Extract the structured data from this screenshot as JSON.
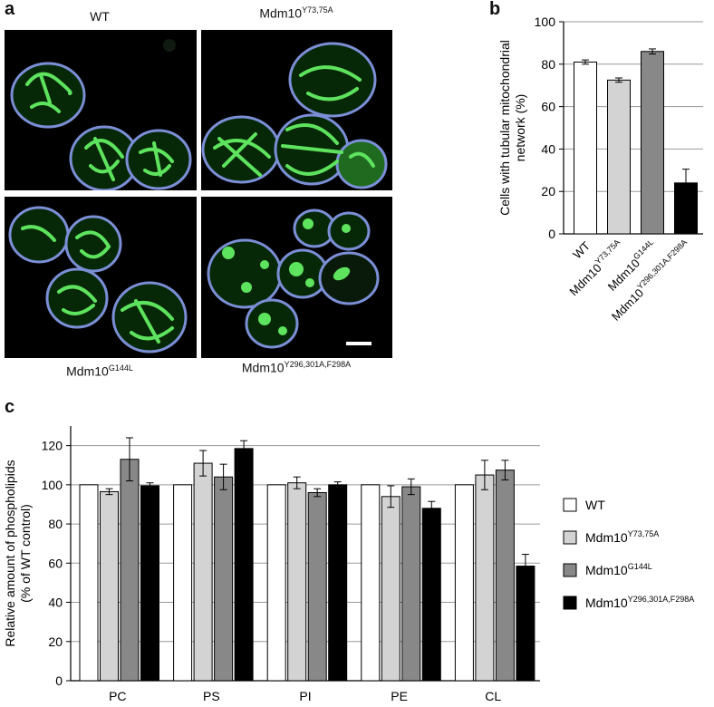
{
  "panel_a": {
    "letter": "a",
    "labels": {
      "wt": "WT",
      "y73_base": "Mdm10",
      "y73_sup": "Y73,75A",
      "g144_base": "Mdm10",
      "g144_sup": "G144L",
      "y296_base": "Mdm10",
      "y296_sup": "Y296,301A,F298A"
    }
  },
  "chart_data": [
    {
      "panel": "b",
      "type": "bar",
      "ylabel_line1": "Cells with tubular mitochondrial",
      "ylabel_line2": "network (%)",
      "ylim": [
        0,
        100
      ],
      "yticks": [
        0,
        20,
        40,
        60,
        80,
        100
      ],
      "grid": true,
      "categories": [
        {
          "base": "WT",
          "sup": ""
        },
        {
          "base": "Mdm10",
          "sup": "Y73,75A"
        },
        {
          "base": "Mdm10",
          "sup": "G144L"
        },
        {
          "base": "Mdm10",
          "sup": "Y296,301A,F298A"
        }
      ],
      "values": [
        81,
        72.5,
        86,
        24
      ],
      "errors": [
        1,
        1,
        1.2,
        6.5
      ],
      "colors": [
        "#ffffff",
        "#d3d3d3",
        "#888888",
        "#000000"
      ]
    },
    {
      "panel": "c",
      "type": "bar",
      "ylabel_line1": "Relative amount of phospholipids",
      "ylabel_line2": "(% of WT control)",
      "ylim": [
        0,
        130
      ],
      "yticks": [
        0,
        20,
        40,
        60,
        80,
        100,
        120
      ],
      "grid": true,
      "legend_position": "right",
      "categories": [
        "PC",
        "PS",
        "PI",
        "PE",
        "CL"
      ],
      "series": [
        {
          "name": "WT",
          "name_sup": "",
          "color": "#ffffff",
          "values": [
            100,
            100,
            100,
            100,
            100
          ],
          "errors": [
            0,
            0,
            0,
            0,
            0
          ]
        },
        {
          "name": "Mdm10",
          "name_sup": "Y73,75A",
          "color": "#d3d3d3",
          "values": [
            96.5,
            111,
            101,
            94,
            105
          ],
          "errors": [
            1.5,
            6.5,
            3,
            5.5,
            7.5
          ]
        },
        {
          "name": "Mdm10",
          "name_sup": "G144L",
          "color": "#888888",
          "values": [
            113,
            104,
            96,
            99,
            107.5
          ],
          "errors": [
            11,
            6.5,
            2,
            4,
            5
          ]
        },
        {
          "name": "Mdm10",
          "name_sup": "Y296,301A,F298A",
          "color": "#000000",
          "values": [
            99.5,
            118.5,
            100,
            88,
            58.5
          ],
          "errors": [
            1.5,
            4,
            1.5,
            3.5,
            6
          ]
        }
      ]
    }
  ]
}
